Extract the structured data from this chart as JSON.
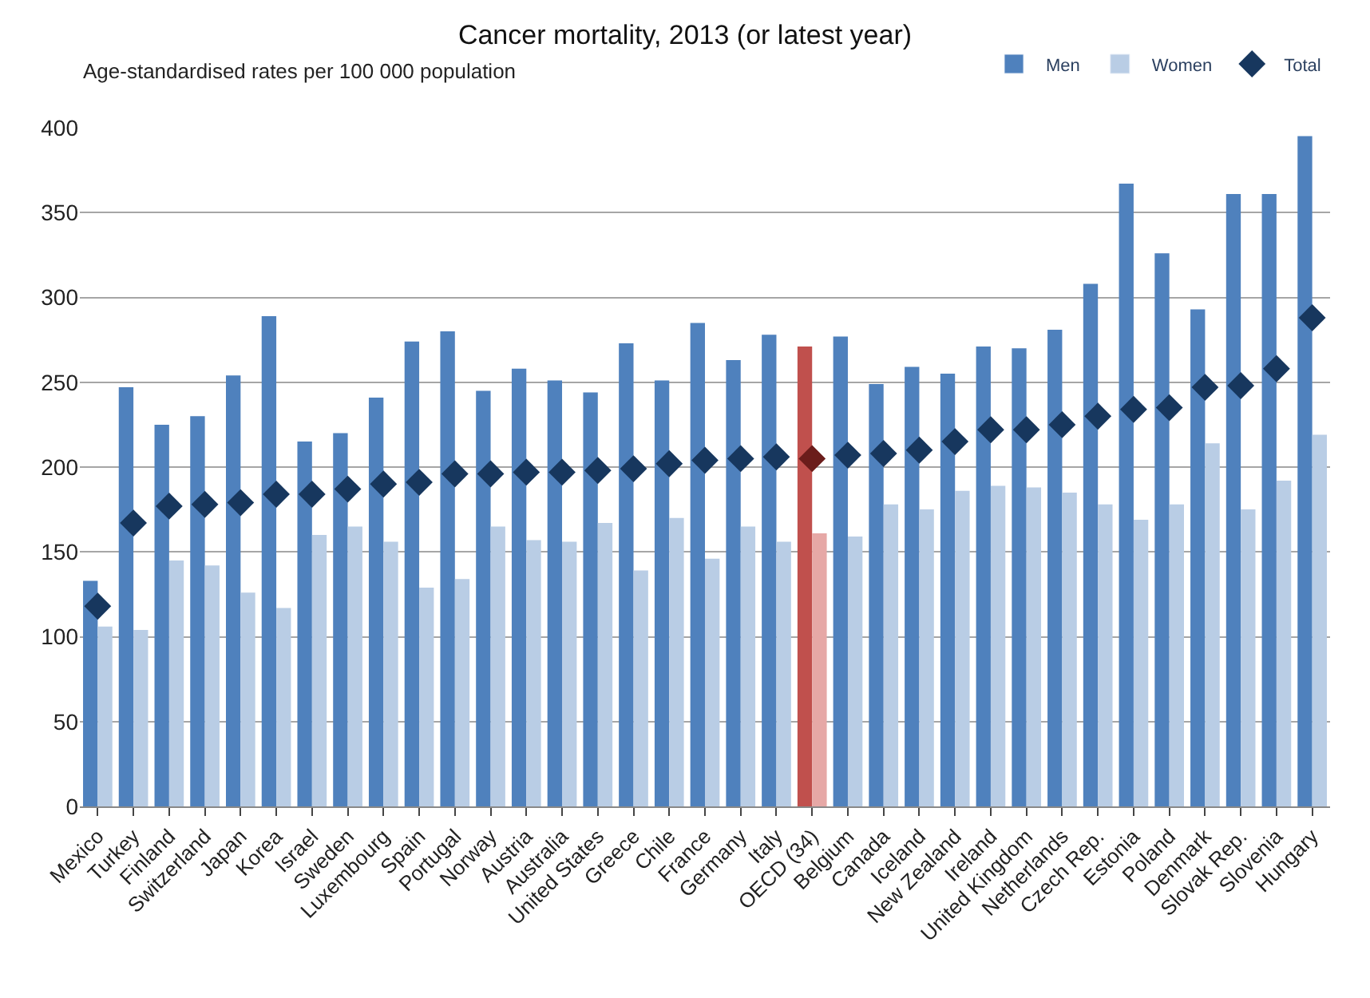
{
  "chart_data": {
    "type": "scatter",
    "title": "Cancer mortality, 2013 (or latest year)",
    "ylabel": "Age-standardised rates per 100 000 population",
    "categories": [
      "Mexico",
      "Turkey",
      "Finland",
      "Switzerland",
      "Japan",
      "Korea",
      "Israel",
      "Sweden",
      "Luxembourg",
      "Spain",
      "Portugal",
      "Norway",
      "Austria",
      "Australia",
      "United States",
      "Greece",
      "Chile",
      "France",
      "Germany",
      "Italy",
      "OECD (34)",
      "Belgium",
      "Canada",
      "Iceland",
      "New Zealand",
      "Ireland",
      "United Kingdom",
      "Netherlands",
      "Czech Rep.",
      "Estonia",
      "Poland",
      "Denmark",
      "Slovak Rep.",
      "Slovenia",
      "Hungary"
    ],
    "series": [
      {
        "name": "Men",
        "type": "bar",
        "color": "#4f81bd",
        "colors": [
          "#4f81bd",
          "#4f81bd",
          "#4f81bd",
          "#4f81bd",
          "#4f81bd",
          "#4f81bd",
          "#4f81bd",
          "#4f81bd",
          "#4f81bd",
          "#4f81bd",
          "#4f81bd",
          "#4f81bd",
          "#4f81bd",
          "#4f81bd",
          "#4f81bd",
          "#4f81bd",
          "#4f81bd",
          "#4f81bd",
          "#4f81bd",
          "#4f81bd",
          "#c0504d",
          "#4f81bd",
          "#4f81bd",
          "#4f81bd",
          "#4f81bd",
          "#4f81bd",
          "#4f81bd",
          "#4f81bd",
          "#4f81bd",
          "#4f81bd",
          "#4f81bd",
          "#4f81bd",
          "#4f81bd",
          "#4f81bd",
          "#4f81bd"
        ],
        "values": [
          133,
          247,
          225,
          230,
          254,
          289,
          215,
          220,
          241,
          274,
          280,
          245,
          258,
          251,
          244,
          273,
          251,
          285,
          263,
          278,
          271,
          277,
          249,
          259,
          255,
          271,
          270,
          281,
          308,
          367,
          326,
          293,
          361,
          361,
          395
        ]
      },
      {
        "name": "Women",
        "type": "bar",
        "color": "#b9cde5",
        "colors": [
          "#b9cde5",
          "#b9cde5",
          "#b9cde5",
          "#b9cde5",
          "#b9cde5",
          "#b9cde5",
          "#b9cde5",
          "#b9cde5",
          "#b9cde5",
          "#b9cde5",
          "#b9cde5",
          "#b9cde5",
          "#b9cde5",
          "#b9cde5",
          "#b9cde5",
          "#b9cde5",
          "#b9cde5",
          "#b9cde5",
          "#b9cde5",
          "#b9cde5",
          "#e6a8a6",
          "#b9cde5",
          "#b9cde5",
          "#b9cde5",
          "#b9cde5",
          "#b9cde5",
          "#b9cde5",
          "#b9cde5",
          "#b9cde5",
          "#b9cde5",
          "#b9cde5",
          "#b9cde5",
          "#b9cde5",
          "#b9cde5",
          "#b9cde5"
        ],
        "values": [
          106,
          104,
          145,
          142,
          126,
          117,
          160,
          165,
          156,
          129,
          134,
          165,
          157,
          156,
          167,
          139,
          170,
          146,
          165,
          156,
          161,
          159,
          178,
          175,
          186,
          189,
          188,
          185,
          178,
          169,
          178,
          214,
          175,
          192,
          219
        ]
      },
      {
        "name": "Total",
        "marker": "diamond",
        "color": "#17375e",
        "colors": [
          "#17375e",
          "#17375e",
          "#17375e",
          "#17375e",
          "#17375e",
          "#17375e",
          "#17375e",
          "#17375e",
          "#17375e",
          "#17375e",
          "#17375e",
          "#17375e",
          "#17375e",
          "#17375e",
          "#17375e",
          "#17375e",
          "#17375e",
          "#17375e",
          "#17375e",
          "#17375e",
          "#6b1d1b",
          "#17375e",
          "#17375e",
          "#17375e",
          "#17375e",
          "#17375e",
          "#17375e",
          "#17375e",
          "#17375e",
          "#17375e",
          "#17375e",
          "#17375e",
          "#17375e",
          "#17375e",
          "#17375e"
        ],
        "values": [
          118,
          167,
          177,
          178,
          179,
          184,
          184,
          187,
          190,
          191,
          196,
          196,
          197,
          197,
          198,
          199,
          202,
          204,
          205,
          206,
          205,
          207,
          208,
          210,
          215,
          222,
          222,
          225,
          230,
          234,
          235,
          247,
          248,
          258,
          288
        ]
      }
    ],
    "ylim": [
      0,
      400
    ],
    "yticks": [
      0,
      50,
      100,
      150,
      200,
      250,
      300,
      350,
      400
    ],
    "grid": "y",
    "legend": "top right"
  }
}
